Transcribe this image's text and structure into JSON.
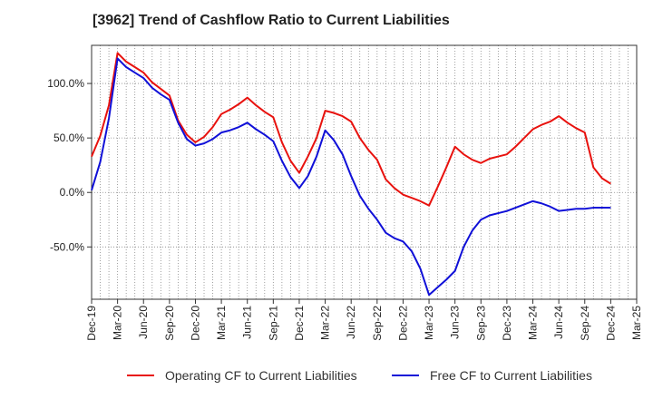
{
  "chart_data": {
    "type": "line",
    "title": "[3962]  Trend of Cashflow Ratio to Current Liabilities",
    "xlabel": "",
    "ylabel": "",
    "ylim": [
      -98,
      135
    ],
    "yticks": [
      100,
      50,
      0,
      -50
    ],
    "ytick_labels": [
      "100.0%",
      "50.0%",
      "0.0%",
      "-50.0%"
    ],
    "xtick_labels": [
      "Dec-19",
      "Mar-20",
      "Jun-20",
      "Sep-20",
      "Dec-20",
      "Mar-21",
      "Jun-21",
      "Sep-21",
      "Dec-21",
      "Mar-22",
      "Jun-22",
      "Sep-22",
      "Dec-22",
      "Mar-23",
      "Jun-23",
      "Sep-23",
      "Dec-23",
      "Mar-24",
      "Jun-24",
      "Sep-24",
      "Dec-24",
      "Mar-25"
    ],
    "grid": true,
    "legend_position": "bottom",
    "x": [
      "Dec-19",
      "Jan-20",
      "Feb-20",
      "Mar-20",
      "Apr-20",
      "May-20",
      "Jun-20",
      "Jul-20",
      "Aug-20",
      "Sep-20",
      "Oct-20",
      "Nov-20",
      "Dec-20",
      "Jan-21",
      "Feb-21",
      "Mar-21",
      "Apr-21",
      "May-21",
      "Jun-21",
      "Jul-21",
      "Aug-21",
      "Sep-21",
      "Oct-21",
      "Nov-21",
      "Dec-21",
      "Jan-22",
      "Feb-22",
      "Mar-22",
      "Apr-22",
      "May-22",
      "Jun-22",
      "Jul-22",
      "Aug-22",
      "Sep-22",
      "Oct-22",
      "Nov-22",
      "Dec-22",
      "Jan-23",
      "Feb-23",
      "Mar-23",
      "Apr-23",
      "May-23",
      "Jun-23",
      "Jul-23",
      "Aug-23",
      "Sep-23",
      "Oct-23",
      "Nov-23",
      "Dec-23",
      "Jan-24",
      "Feb-24",
      "Mar-24",
      "Apr-24",
      "May-24",
      "Jun-24",
      "Jul-24",
      "Aug-24",
      "Sep-24",
      "Oct-24",
      "Nov-24",
      "Dec-24"
    ],
    "series": [
      {
        "name": "Operating CF to Current Liabilities",
        "color": "#e8120e",
        "values": [
          33,
          52,
          80,
          128,
          120,
          115,
          110,
          101,
          95,
          89,
          66,
          53,
          46,
          51,
          60,
          72,
          76,
          81,
          87,
          80,
          74,
          69,
          46,
          29,
          18,
          33,
          50,
          75,
          73,
          70,
          65,
          50,
          39,
          30,
          12,
          4,
          -2,
          -5,
          -8,
          -12,
          5,
          23,
          42,
          35,
          30,
          27,
          31,
          33,
          35,
          42,
          50,
          58,
          62,
          65,
          70,
          64,
          59,
          55,
          23,
          13,
          8
        ]
      },
      {
        "name": "Free CF to Current Liabilities",
        "color": "#1010d8",
        "values": [
          2,
          28,
          68,
          123,
          115,
          110,
          105,
          96,
          90,
          85,
          64,
          49,
          43,
          45,
          49,
          55,
          57,
          60,
          64,
          58,
          53,
          47,
          29,
          14,
          4,
          15,
          33,
          57,
          48,
          35,
          15,
          -3,
          -15,
          -25,
          -37,
          -42,
          -45,
          -54,
          -70,
          -94,
          -87,
          -80,
          -72,
          -50,
          -35,
          -25,
          -21,
          -19,
          -17,
          -14,
          -11,
          -8,
          -10,
          -13,
          -17,
          -16,
          -15,
          -15,
          -14,
          -14,
          -14
        ]
      }
    ]
  }
}
